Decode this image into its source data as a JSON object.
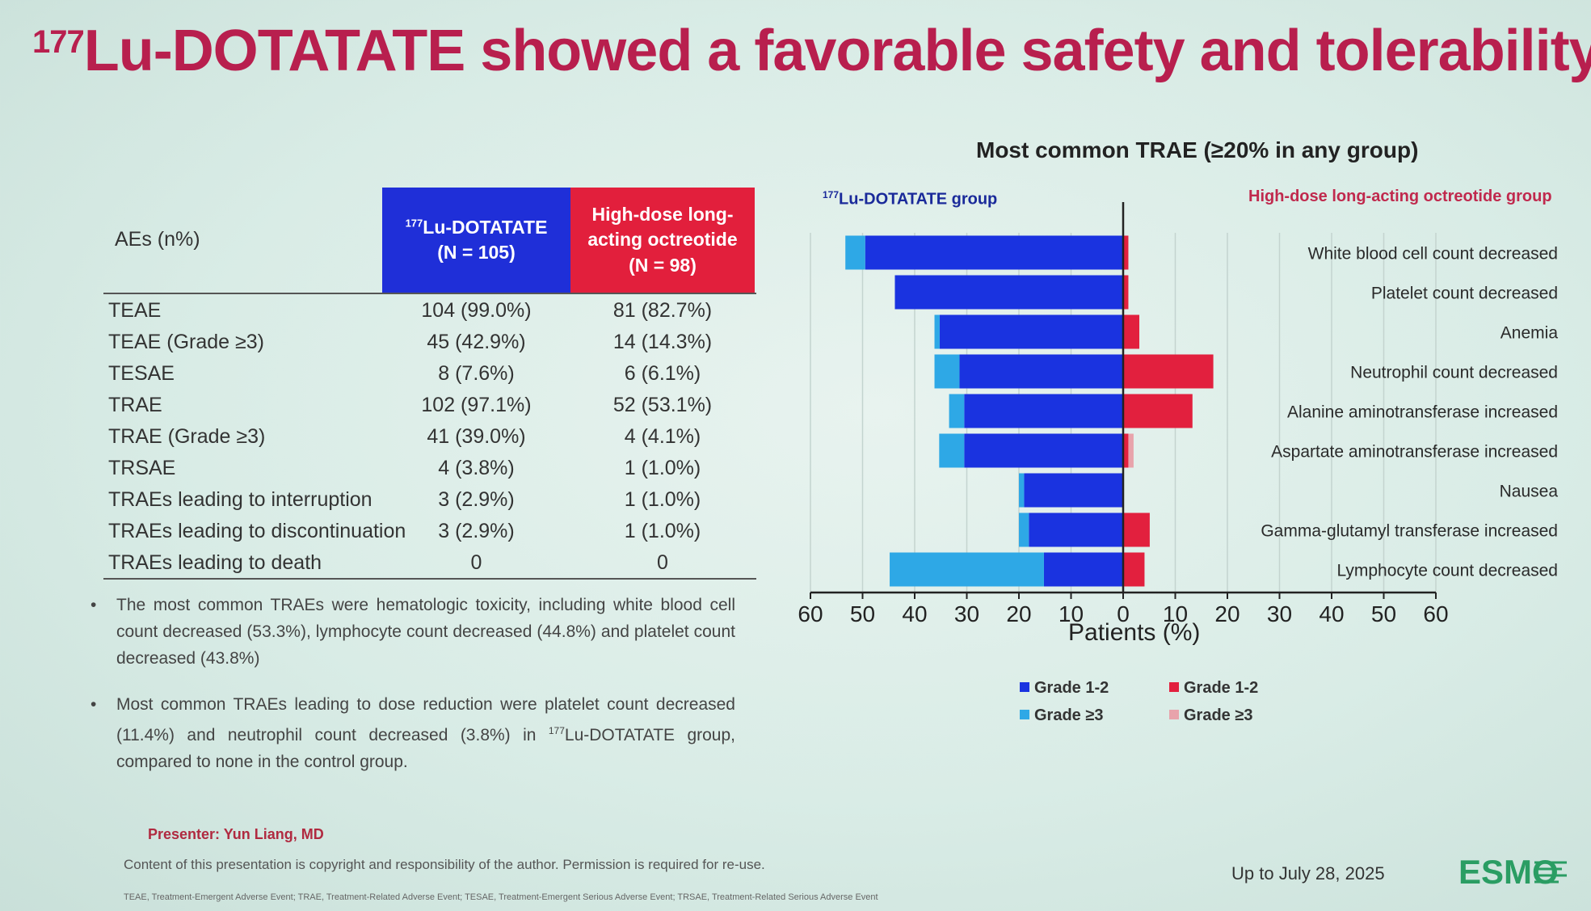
{
  "title": {
    "sup": "177",
    "text": "Lu-DOTATATE showed a favorable safety and tolerability"
  },
  "table": {
    "col0": "AEs (n%)",
    "col1_sup": "177",
    "col1_line1": "Lu-DOTATATE",
    "col1_line2": "(N = 105)",
    "col2_line1": "High-dose long-",
    "col2_line2": "acting octreotide",
    "col2_line3": "(N = 98)",
    "rows": [
      {
        "label": "TEAE",
        "lu": "104 (99.0%)",
        "oct": "81 (82.7%)"
      },
      {
        "label": "TEAE (Grade ≥3)",
        "lu": "45 (42.9%)",
        "oct": "14 (14.3%)"
      },
      {
        "label": "TESAE",
        "lu": "8 (7.6%)",
        "oct": "6 (6.1%)"
      },
      {
        "label": "TRAE",
        "lu": "102 (97.1%)",
        "oct": "52 (53.1%)"
      },
      {
        "label": "TRAE (Grade ≥3)",
        "lu": "41 (39.0%)",
        "oct": "4 (4.1%)"
      },
      {
        "label": "TRSAE",
        "lu": "4 (3.8%)",
        "oct": "1 (1.0%)"
      },
      {
        "label": "TRAEs leading to interruption",
        "lu": "3 (2.9%)",
        "oct": "1 (1.0%)"
      },
      {
        "label": "TRAEs leading to discontinuation",
        "lu": "3 (2.9%)",
        "oct": "1 (1.0%)"
      },
      {
        "label": "TRAEs leading to death",
        "lu": "0",
        "oct": "0"
      }
    ]
  },
  "bullets": {
    "b1": "The most common TRAEs were hematologic toxicity, including white blood cell count decreased (53.3%), lymphocyte count decreased (44.8%) and platelet count decreased (43.8%)",
    "b2_part1": "Most common TRAEs leading to dose reduction were platelet count decreased (11.4%) and neutrophil count decreased (3.8%) in ",
    "b2_sup": "177",
    "b2_part2": "Lu-DOTATATE group, compared to none in the control group.",
    "marker": "•"
  },
  "footer": {
    "presenter": "Presenter: Yun Liang, MD",
    "copyright": "Content of this presentation is copyright and responsibility of the author. Permission is required for re-use.",
    "abbrev": "TEAE, Treatment-Emergent Adverse Event; TRAE, Treatment-Related Adverse Event; TESAE, Treatment-Emergent Serious Adverse Event; TRSAE, Treatment-Related Serious Adverse Event",
    "date": "Up to July 28, 2025",
    "logo": "ESMO"
  },
  "chart_data": {
    "type": "bar",
    "orientation": "horizontal-diverging",
    "title": "Most common TRAE (≥20% in any group)",
    "left_group_sup": "177",
    "left_group": "Lu-DOTATATE group",
    "right_group": "High-dose long-acting octreotide group",
    "xlabel": "Patients (%)",
    "xlim": [
      -60,
      60
    ],
    "xticks": [
      -60,
      -50,
      -40,
      -30,
      -20,
      -10,
      0,
      10,
      20,
      30,
      40,
      50,
      60
    ],
    "xtick_labels": [
      "60",
      "50",
      "40",
      "30",
      "20",
      "10",
      "0",
      "10",
      "20",
      "30",
      "40",
      "50",
      "60"
    ],
    "categories": [
      "White blood cell count decreased",
      "Platelet count decreased",
      "Anemia",
      "Neutrophil count decreased",
      "Alanine aminotransferase increased",
      "Aspartate aminotransferase increased",
      "Nausea",
      "Gamma-glutamyl transferase increased",
      "Lymphocyte count decreased"
    ],
    "series": [
      {
        "name": "Lu-DOTATATE Grade 1-2",
        "side": "left",
        "color": "#1a33e0",
        "values": [
          49.5,
          43.8,
          35.2,
          31.4,
          30.5,
          30.5,
          19.0,
          18.1,
          15.2
        ]
      },
      {
        "name": "Lu-DOTATATE Grade ≥3",
        "side": "left",
        "color": "#2ea8e6",
        "values": [
          3.8,
          0,
          1.0,
          4.8,
          2.9,
          4.8,
          1.0,
          1.9,
          29.6
        ]
      },
      {
        "name": "Octreotide Grade 1-2",
        "side": "right",
        "color": "#e2203e",
        "values": [
          1.0,
          1.0,
          3.1,
          17.3,
          13.3,
          1.0,
          0,
          5.1,
          4.1
        ]
      },
      {
        "name": "Octreotide Grade ≥3",
        "side": "right",
        "color": "#e8a3ab",
        "values": [
          0,
          0,
          0,
          0,
          0,
          1.0,
          0,
          0,
          0
        ]
      }
    ],
    "legend": [
      {
        "label": "Grade 1-2",
        "color": "#1a33e0"
      },
      {
        "label": "Grade ≥3",
        "color": "#2ea8e6"
      },
      {
        "label": "Grade 1-2",
        "color": "#e2203e"
      },
      {
        "label": "Grade ≥3",
        "color": "#e8a3ab"
      }
    ],
    "grid": true
  }
}
